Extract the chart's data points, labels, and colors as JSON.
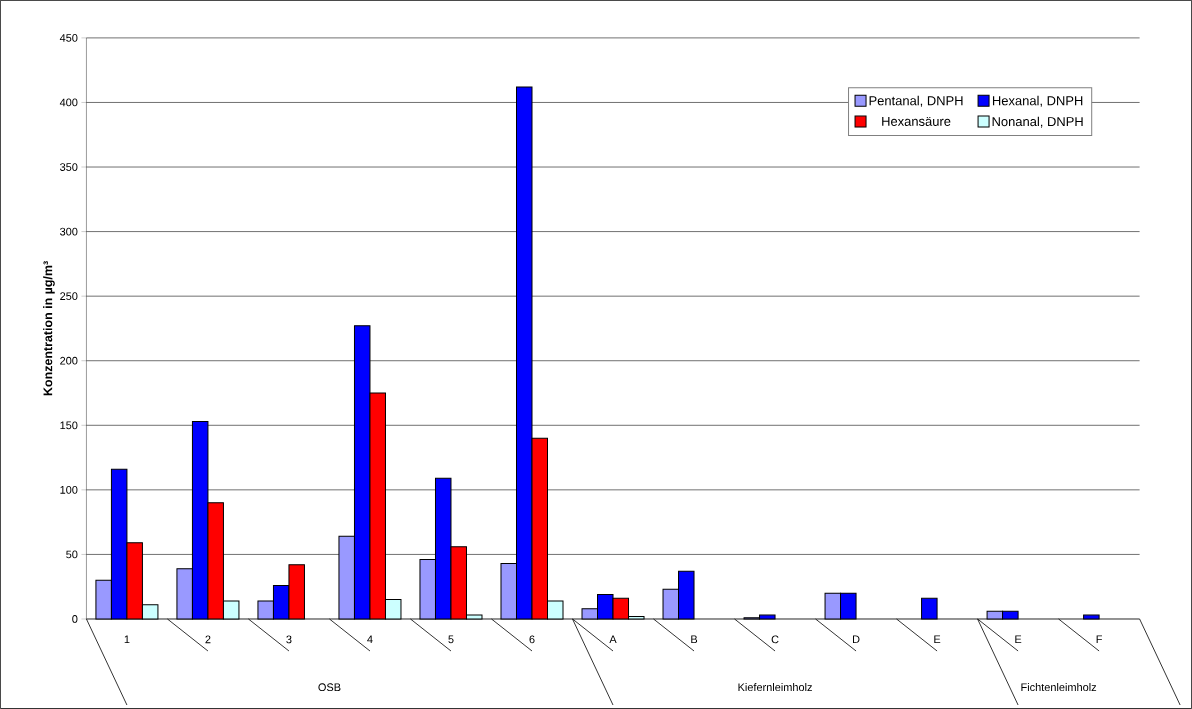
{
  "chart_data": {
    "type": "bar",
    "ylabel": "Konzentration in µg/m³",
    "categories": [
      "1",
      "2",
      "3",
      "4",
      "5",
      "6",
      "A",
      "B",
      "C",
      "D",
      "E",
      "E",
      "F"
    ],
    "annotations": [
      "OSB",
      "Kiefernleimholz",
      "Fichtenleimholz"
    ],
    "series": [
      {
        "name": "Pentanal, DNPH",
        "color": "#9999ff",
        "values": [
          30,
          39,
          14,
          64,
          46,
          43,
          8,
          23,
          1,
          20,
          null,
          6,
          null
        ]
      },
      {
        "name": "Hexanal, DNPH",
        "color": "#0000ff",
        "values": [
          116,
          153,
          26,
          227,
          109,
          412,
          19,
          37,
          3,
          20,
          16,
          6,
          3
        ]
      },
      {
        "name": "Hexansäure",
        "color": "#ff0000",
        "values": [
          59,
          90,
          42,
          175,
          56,
          140,
          16,
          null,
          null,
          null,
          null,
          null,
          null
        ]
      },
      {
        "name": "Nonanal, DNPH",
        "color": "#ccffff",
        "values": [
          11,
          14,
          null,
          15,
          3,
          14,
          2,
          null,
          null,
          null,
          null,
          null,
          null
        ]
      }
    ],
    "ylim": [
      0,
      450
    ],
    "yticks": [
      0,
      50,
      100,
      150,
      200,
      250,
      300,
      350,
      400,
      450
    ],
    "grid": "y",
    "legend": "top right"
  }
}
